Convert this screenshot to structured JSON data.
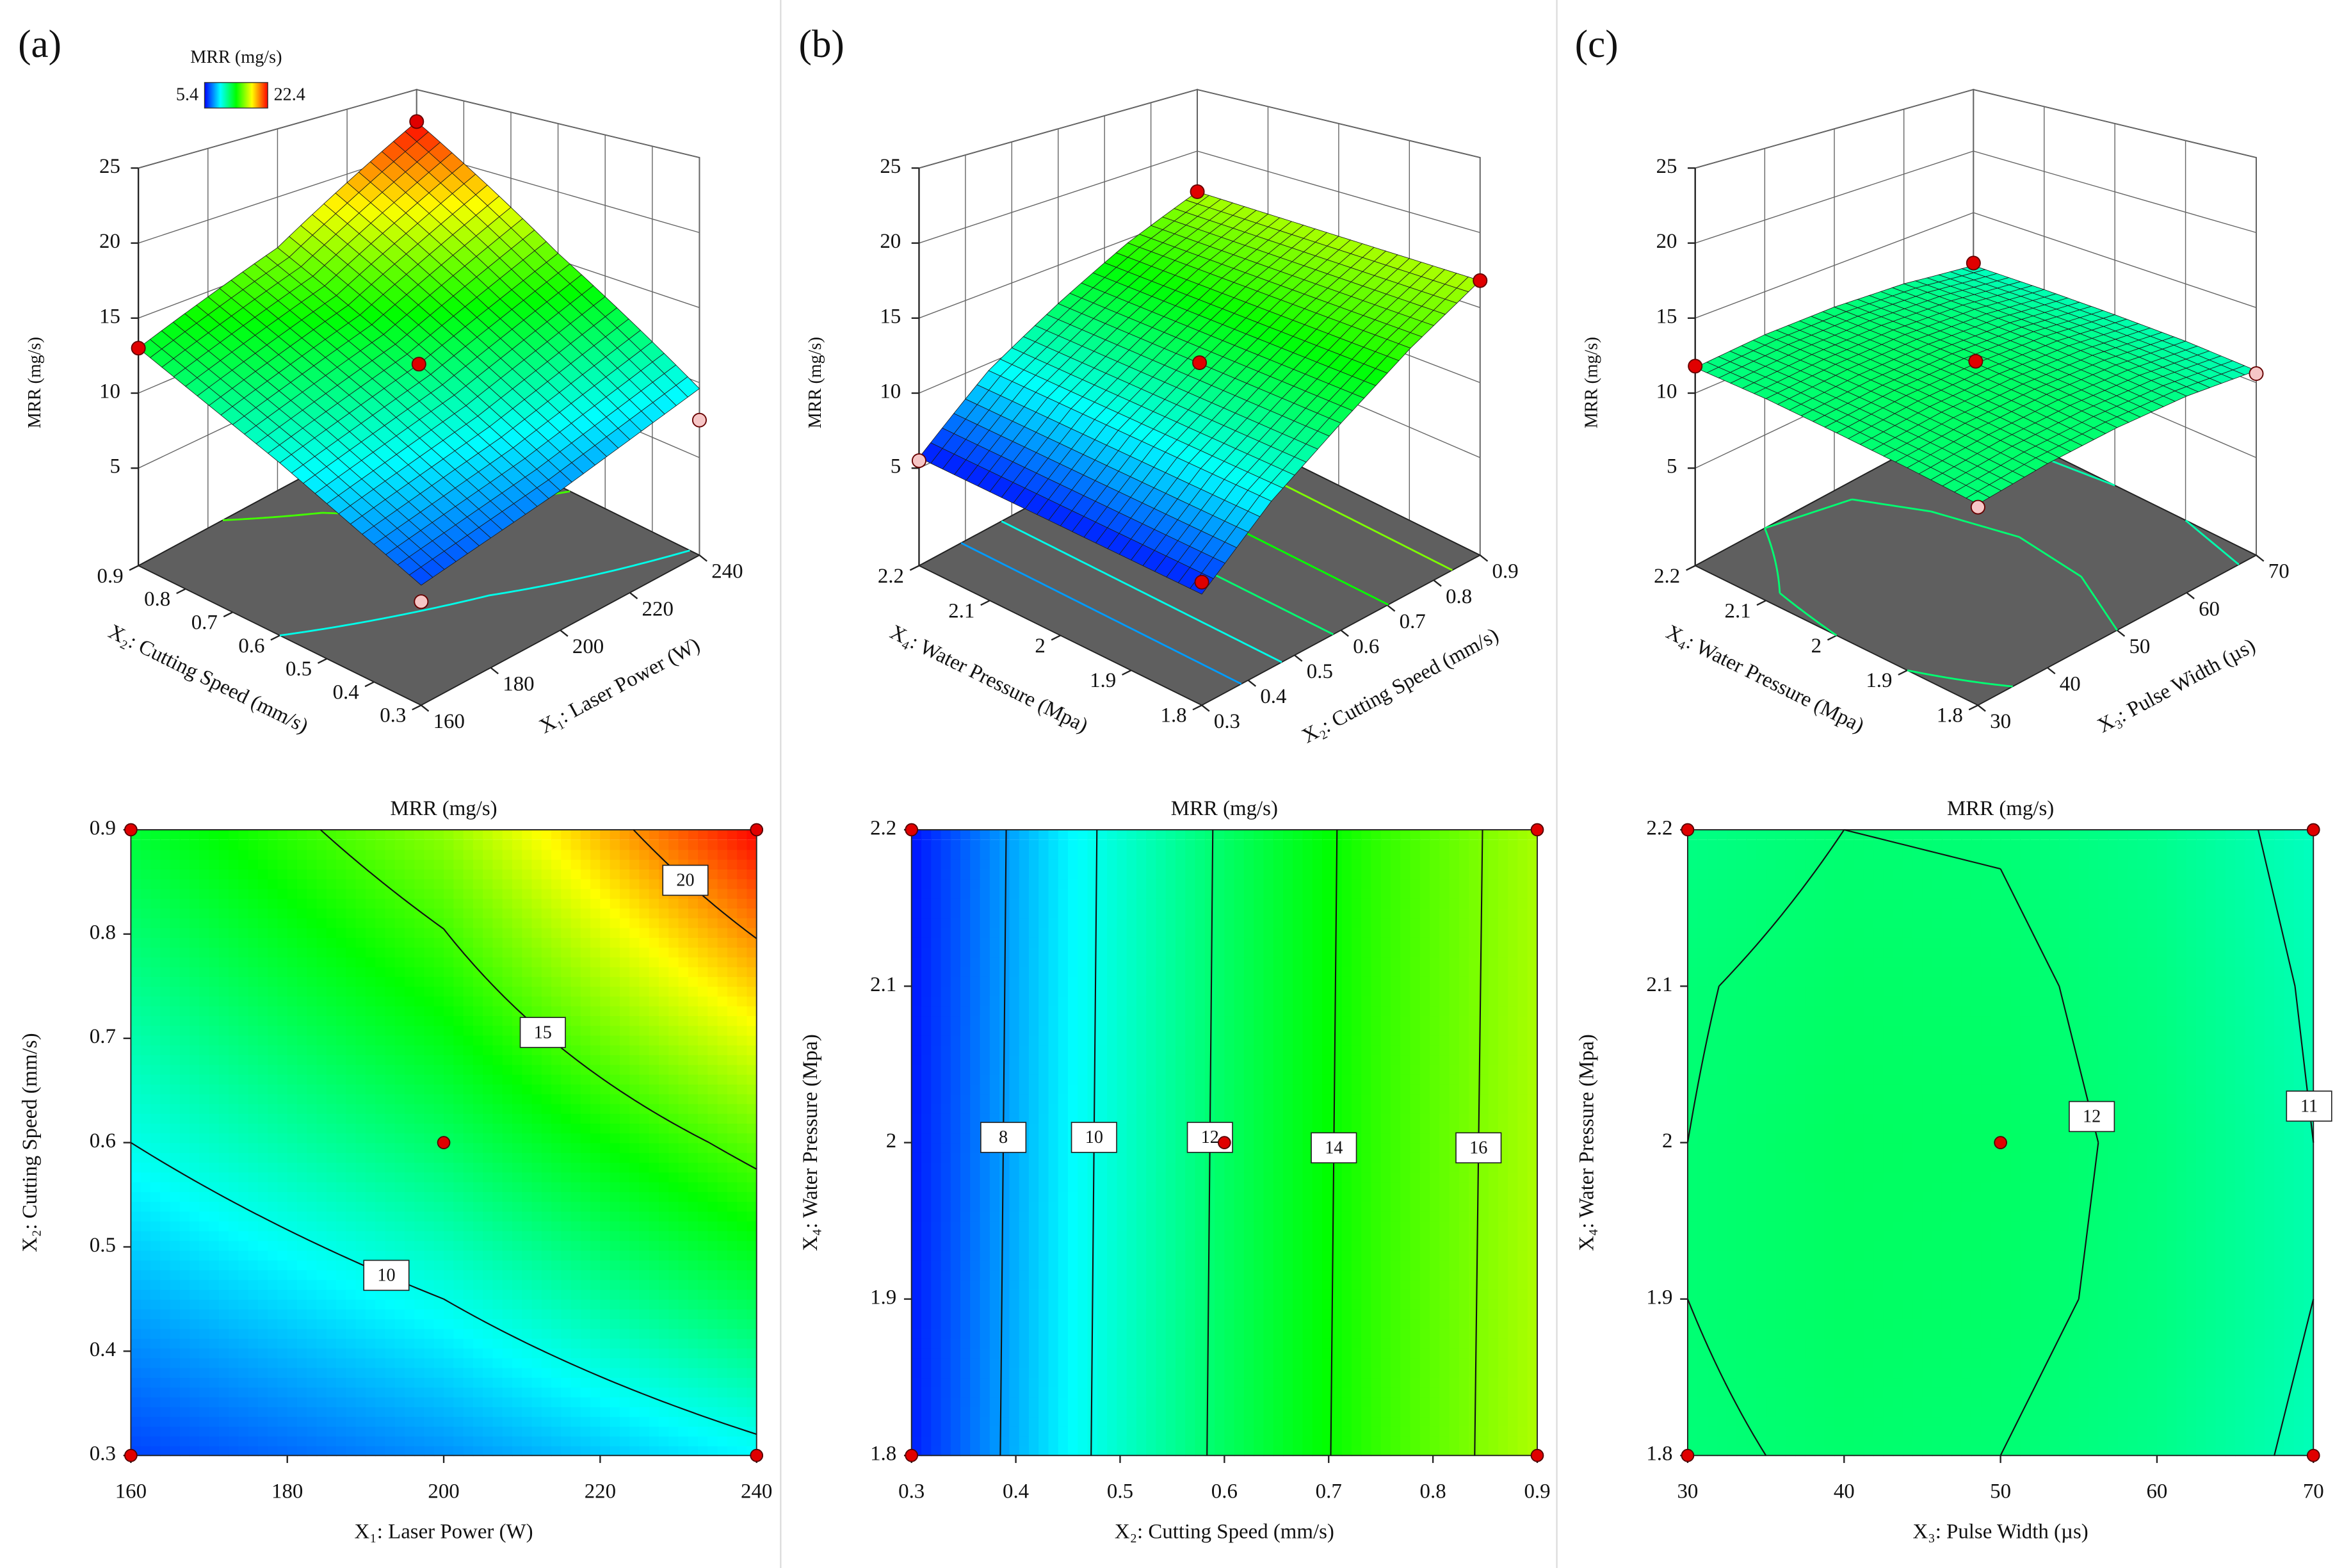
{
  "chart_data": [
    {
      "type": "surface",
      "panel_label": "(a)",
      "title": "MRR (mg/s)",
      "z_label": "MRR (mg/s)",
      "x_label": "X₁: Laser Power (W)",
      "y_label": "X₂: Cutting Speed (mm/s)",
      "xlim": [
        160,
        240
      ],
      "xticks": [
        160,
        180,
        200,
        220,
        240
      ],
      "ylim": [
        0.3,
        0.9
      ],
      "yticks": [
        0.3,
        0.4,
        0.5,
        0.6,
        0.7,
        0.8,
        0.9
      ],
      "zlim": [
        -1.5,
        25
      ],
      "zticks": [
        5,
        10,
        15,
        20,
        25
      ],
      "grid_x": [
        160,
        200,
        240
      ],
      "grid_y": [
        0.3,
        0.6,
        0.9
      ],
      "z": [
        [
          6.5,
          7.8,
          9.6
        ],
        [
          10,
          12.2,
          15.5
        ],
        [
          13,
          16.3,
          22.4
        ]
      ],
      "levels": [
        10,
        15,
        20
      ],
      "points": {
        "x": [
          160,
          240,
          160,
          240,
          200
        ],
        "y": [
          0.3,
          0.3,
          0.9,
          0.9,
          0.6
        ],
        "z": [
          5.4,
          7.5,
          13,
          22.4,
          12.2
        ]
      },
      "colorbar": {
        "title": "MRR (mg/s)",
        "range": [
          5.4,
          22.4
        ]
      }
    },
    {
      "type": "surface",
      "panel_label": "(b)",
      "title": "MRR (mg/s)",
      "z_label": "MRR (mg/s)",
      "x_label": "X₂: Cutting Speed (mm/s)",
      "y_label": "X₄: Water Pressure (Mpa)",
      "xlim": [
        0.3,
        0.9
      ],
      "xticks": [
        0.3,
        0.4,
        0.5,
        0.6,
        0.7,
        0.8,
        0.9
      ],
      "ylim": [
        1.8,
        2.2
      ],
      "yticks": [
        1.8,
        1.9,
        2,
        2.1,
        2.2
      ],
      "zlim": [
        -1.5,
        25
      ],
      "zticks": [
        5,
        10,
        15,
        20,
        25
      ],
      "grid_x": [
        0.3,
        0.45,
        0.6,
        0.75,
        0.9
      ],
      "grid_y": [
        1.8,
        2.2
      ],
      "z": [
        [
          5.9,
          9.6,
          12.3,
          14.8,
          16.8
        ],
        [
          5.7,
          9.5,
          12.2,
          14.7,
          16.7
        ]
      ],
      "levels": [
        8,
        10,
        12,
        14,
        16
      ],
      "points": {
        "x": [
          0.3,
          0.3,
          0.9,
          0.9,
          0.6
        ],
        "y": [
          1.8,
          2.2,
          1.8,
          2.2,
          2
        ],
        "z": [
          6.7,
          5.5,
          16.8,
          16.7,
          12.3
        ]
      }
    },
    {
      "type": "surface",
      "panel_label": "(c)",
      "title": "MRR (mg/s)",
      "z_label": "MRR (mg/s)",
      "x_label": "X₃: Pulse Width (µs)",
      "y_label": "X₄: Water Pressure (Mpa)",
      "xlim": [
        30,
        70
      ],
      "xticks": [
        30,
        40,
        50,
        60,
        70
      ],
      "ylim": [
        1.8,
        2.2
      ],
      "yticks": [
        1.8,
        1.9,
        2,
        2.1,
        2.2
      ],
      "zlim": [
        -1.5,
        25
      ],
      "zticks": [
        5,
        10,
        15,
        20,
        25
      ],
      "grid_x": [
        30,
        40,
        50,
        60,
        70
      ],
      "grid_y": [
        1.8,
        1.9,
        2,
        2.1,
        2.2
      ],
      "z": [
        [
          11.9,
          12.1,
          12.0,
          11.6,
          10.8
        ],
        [
          12.0,
          12.25,
          12.2,
          11.8,
          11.0
        ],
        [
          12.0,
          12.3,
          12.25,
          11.85,
          11.0
        ],
        [
          11.95,
          12.2,
          12.15,
          11.75,
          10.9
        ],
        [
          11.7,
          12.0,
          11.95,
          11.55,
          10.7
        ]
      ],
      "levels": [
        11,
        12
      ],
      "points": {
        "x": [
          30,
          30,
          70,
          70,
          50
        ],
        "y": [
          1.8,
          2.2,
          1.8,
          2.2,
          2
        ],
        "z": [
          11.7,
          11.8,
          10.6,
          10.9,
          12.4
        ]
      }
    }
  ]
}
